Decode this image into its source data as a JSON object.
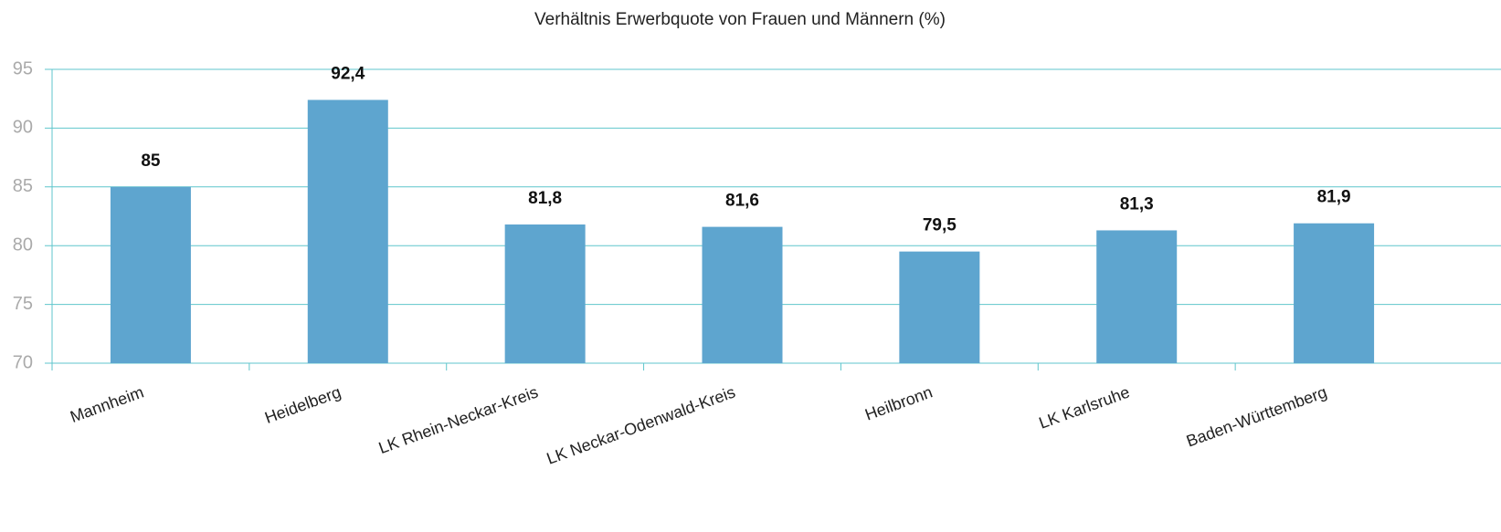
{
  "chart_data": {
    "type": "bar",
    "title": "Verhältnis Erwerbquote von Frauen und Männern (%)",
    "categories": [
      "Mannheim",
      "Heidelberg",
      "LK Rhein-Neckar-Kreis",
      "LK Neckar-Odenwald-Kreis",
      "Heilbronn",
      "LK Karlsruhe",
      "Baden-Württemberg"
    ],
    "values": [
      85,
      92.4,
      81.8,
      81.6,
      79.5,
      81.3,
      81.9
    ],
    "value_labels": [
      "85",
      "92,4",
      "81,8",
      "81,6",
      "79,5",
      "81,3",
      "81,9"
    ],
    "color": "#5ea5cf",
    "ylim": [
      70,
      95
    ],
    "yticks": [
      70,
      75,
      80,
      85,
      90,
      95
    ],
    "grid": true
  }
}
